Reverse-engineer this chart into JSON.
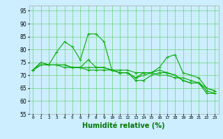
{
  "x": [
    0,
    1,
    2,
    3,
    4,
    5,
    6,
    7,
    8,
    9,
    10,
    11,
    12,
    13,
    14,
    15,
    16,
    17,
    18,
    19,
    20,
    21,
    22,
    23
  ],
  "series": [
    [
      72,
      75,
      74,
      79,
      83,
      81,
      76,
      86,
      86,
      83,
      72,
      71,
      71,
      69,
      71,
      71,
      73,
      77,
      78,
      71,
      70,
      69,
      65,
      64
    ],
    [
      72,
      74,
      74,
      74,
      74,
      73,
      73,
      73,
      73,
      73,
      72,
      72,
      72,
      71,
      71,
      71,
      70,
      70,
      69,
      69,
      68,
      67,
      65,
      64
    ],
    [
      72,
      75,
      74,
      74,
      73,
      73,
      73,
      76,
      73,
      73,
      72,
      71,
      71,
      69,
      70,
      71,
      72,
      71,
      70,
      68,
      67,
      67,
      64,
      63
    ],
    [
      72,
      74,
      74,
      74,
      74,
      73,
      73,
      72,
      72,
      72,
      72,
      71,
      71,
      68,
      68,
      70,
      71,
      71,
      70,
      68,
      67,
      67,
      63,
      63
    ]
  ],
  "line_color": "#00aa00",
  "marker": "+",
  "markersize": 3,
  "linewidth": 0.8,
  "xlabel": "Humidité relative (%)",
  "xlabel_color": "#007700",
  "xlabel_fontsize": 7,
  "background_color": "#cceeff",
  "grid_color": "#55cc55",
  "tick_color": "#000000",
  "xlim": [
    -0.5,
    23.5
  ],
  "ylim": [
    55,
    97
  ],
  "yticks": [
    55,
    60,
    65,
    70,
    75,
    80,
    85,
    90,
    95
  ],
  "xticks": [
    0,
    1,
    2,
    3,
    4,
    5,
    6,
    7,
    8,
    9,
    10,
    11,
    12,
    13,
    14,
    15,
    16,
    17,
    18,
    19,
    20,
    21,
    22,
    23
  ]
}
